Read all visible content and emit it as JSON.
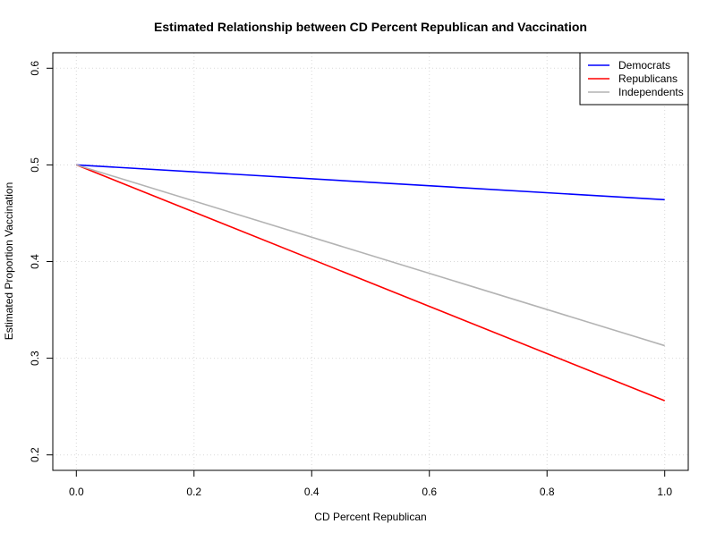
{
  "chart_data": {
    "type": "line",
    "title": "Estimated Relationship between CD Percent Republican and Vaccination",
    "xlabel": "CD Percent Republican",
    "ylabel": "Estimated Proportion Vaccination",
    "xlim": [
      -0.04,
      1.04
    ],
    "ylim": [
      0.184,
      0.616
    ],
    "xticks": [
      0.0,
      0.2,
      0.4,
      0.6,
      0.8,
      1.0
    ],
    "xtick_labels": [
      "0.0",
      "0.2",
      "0.4",
      "0.6",
      "0.8",
      "1.0"
    ],
    "yticks": [
      0.2,
      0.3,
      0.4,
      0.5,
      0.6
    ],
    "ytick_labels": [
      "0.2",
      "0.3",
      "0.4",
      "0.5",
      "0.6"
    ],
    "grid": true,
    "legend_position": "top-right",
    "series": [
      {
        "name": "Democrats",
        "color": "#0000ff",
        "x": [
          0.0,
          1.0
        ],
        "y": [
          0.5,
          0.464
        ]
      },
      {
        "name": "Republicans",
        "color": "#ff0000",
        "x": [
          0.0,
          1.0
        ],
        "y": [
          0.5,
          0.256
        ]
      },
      {
        "name": "Independents",
        "color": "#b3b3b3",
        "x": [
          0.0,
          1.0
        ],
        "y": [
          0.5,
          0.313
        ]
      }
    ]
  }
}
